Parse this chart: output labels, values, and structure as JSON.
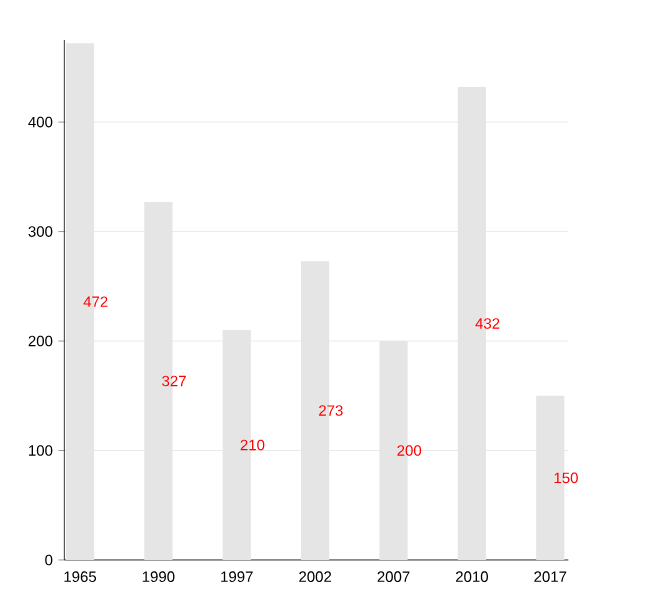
{
  "chart_data": {
    "type": "bar",
    "categories": [
      "1965",
      "1990",
      "1997",
      "2002",
      "2007",
      "2010",
      "2017"
    ],
    "values": [
      472,
      327,
      210,
      273,
      200,
      432,
      150
    ],
    "color": "#e5e5e5",
    "ylim": [
      0,
      475
    ],
    "yticks": [
      0,
      100,
      200,
      300,
      400
    ],
    "grid": "y",
    "data_labels": true
  }
}
